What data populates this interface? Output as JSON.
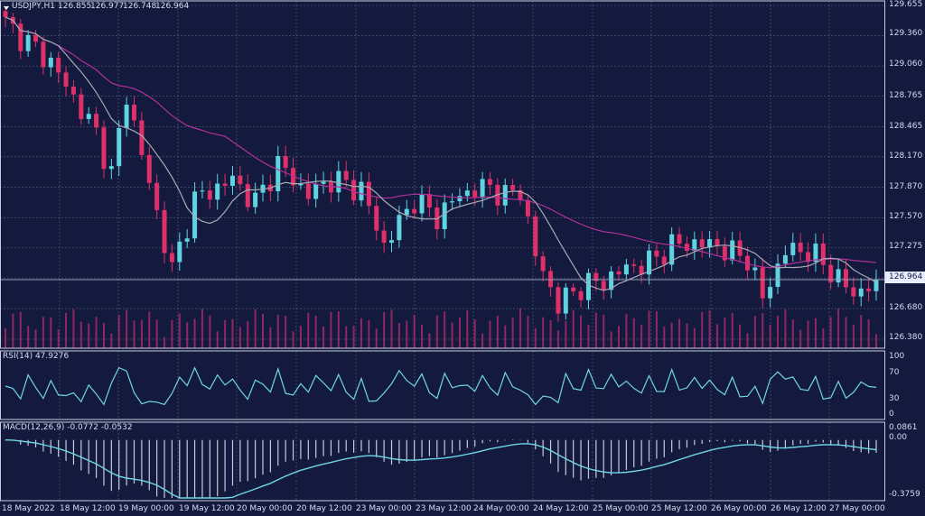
{
  "chart_data": {
    "type": "candlestick",
    "title": "USDJPY,H1",
    "ohlc_readout": [
      "126.855",
      "126.977",
      "126.748",
      "126.964"
    ],
    "last_price": "126.964",
    "x_ticks": [
      "18 May 2022",
      "18 May 12:00",
      "19 May 00:00",
      "19 May 12:00",
      "20 May 00:00",
      "20 May 12:00",
      "23 May 00:00",
      "23 May 12:00",
      "24 May 00:00",
      "24 May 12:00",
      "25 May 00:00",
      "25 May 12:00",
      "26 May 00:00",
      "26 May 12:00",
      "27 May 00:00"
    ],
    "price_axis": {
      "ticks": [
        "129.655",
        "129.360",
        "129.060",
        "128.765",
        "128.465",
        "128.170",
        "127.870",
        "127.570",
        "127.275",
        "126.980",
        "126.680",
        "126.380"
      ],
      "range": [
        126.38,
        129.655
      ]
    },
    "moving_averages": [
      "fast-ma-gray",
      "slow-ma-magenta"
    ],
    "rsi": {
      "label": "RSI(14) 47.9276",
      "ticks": [
        "100",
        "70",
        "30",
        "0"
      ],
      "range": [
        0,
        100
      ],
      "last": 47.93
    },
    "macd": {
      "label": "MACD(12,26,9) -0.0772 -0.0532",
      "ticks": [
        "0.0861",
        "0.00",
        "-0.3759"
      ],
      "range": [
        -0.3759,
        0.0861
      ],
      "macd_last": -0.0772,
      "signal_last": -0.0532
    },
    "close_path": [
      [
        0,
        129.48
      ],
      [
        6,
        129.1
      ],
      [
        12,
        128.4
      ],
      [
        14,
        128.0
      ],
      [
        16,
        128.78
      ],
      [
        19,
        127.9
      ],
      [
        22,
        127.05
      ],
      [
        25,
        127.75
      ],
      [
        30,
        127.95
      ],
      [
        33,
        127.72
      ],
      [
        36,
        128.1
      ],
      [
        40,
        127.8
      ],
      [
        43,
        127.95
      ],
      [
        47,
        127.85
      ],
      [
        50,
        127.3
      ],
      [
        54,
        127.75
      ],
      [
        57,
        127.58
      ],
      [
        60,
        127.8
      ],
      [
        64,
        127.88
      ],
      [
        66,
        127.78
      ],
      [
        68,
        127.85
      ],
      [
        70,
        127.2
      ],
      [
        73,
        126.72
      ],
      [
        76,
        126.9
      ],
      [
        79,
        126.95
      ],
      [
        82,
        127.08
      ],
      [
        85,
        127.13
      ],
      [
        88,
        127.3
      ],
      [
        91,
        127.32
      ],
      [
        94,
        127.3
      ],
      [
        96,
        127.22
      ],
      [
        98,
        127.18
      ],
      [
        100,
        126.78
      ],
      [
        103,
        127.25
      ],
      [
        106,
        127.25
      ],
      [
        109,
        127.05
      ],
      [
        112,
        126.82
      ],
      [
        115,
        126.95
      ]
    ],
    "colors": {
      "background": "#131a3e",
      "bull": "#5fd3e0",
      "bear": "#e0306a",
      "fast_ma": "#a8aab4",
      "slow_ma": "#b0309a",
      "volume": "#b02a6a",
      "rsi": "#6fd6e6",
      "macd_signal": "#6fd6e6",
      "macd_hist": "#c8cad8",
      "grid": "#7a8099"
    }
  }
}
